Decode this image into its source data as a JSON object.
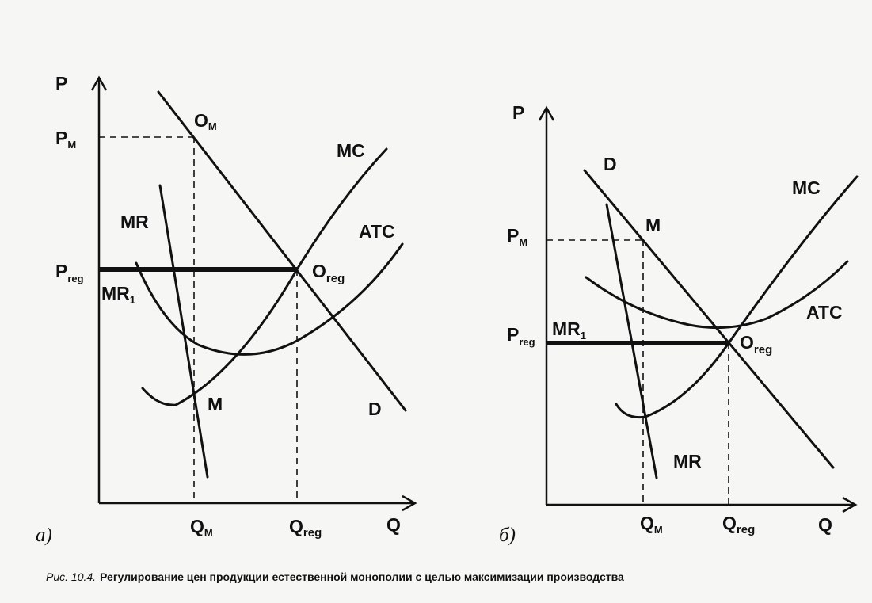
{
  "panel_a": {
    "letter": "a)",
    "axis_p": "P",
    "axis_q": "Q",
    "p_m": {
      "main": "P",
      "sub": "M"
    },
    "p_reg": {
      "main": "P",
      "sub": "reg"
    },
    "q_m": {
      "main": "Q",
      "sub": "M"
    },
    "q_reg": {
      "main": "Q",
      "sub": "reg"
    },
    "o_m": {
      "main": "O",
      "sub": "M"
    },
    "o_reg": {
      "main": "O",
      "sub": "reg"
    },
    "mc": "MC",
    "atc": "ATC",
    "mr": "MR",
    "mr1": {
      "main": "MR",
      "sub": "1"
    },
    "m": "M",
    "d": "D"
  },
  "panel_b": {
    "letter": "б)",
    "axis_p": "P",
    "axis_q": "Q",
    "p_m": {
      "main": "P",
      "sub": "M"
    },
    "p_reg": {
      "main": "P",
      "sub": "reg"
    },
    "q_m": {
      "main": "Q",
      "sub": "M"
    },
    "q_reg": {
      "main": "Q",
      "sub": "reg"
    },
    "o_reg": {
      "main": "O",
      "sub": "reg"
    },
    "mc": "MC",
    "atc": "ATC",
    "mr": "MR",
    "mr1": {
      "main": "MR",
      "sub": "1"
    },
    "m": "M",
    "d": "D"
  },
  "caption": {
    "prefix": "Рис. 10.4.",
    "text": "Регулирование цен продукции естественной монополии с целью максимизации производства"
  }
}
